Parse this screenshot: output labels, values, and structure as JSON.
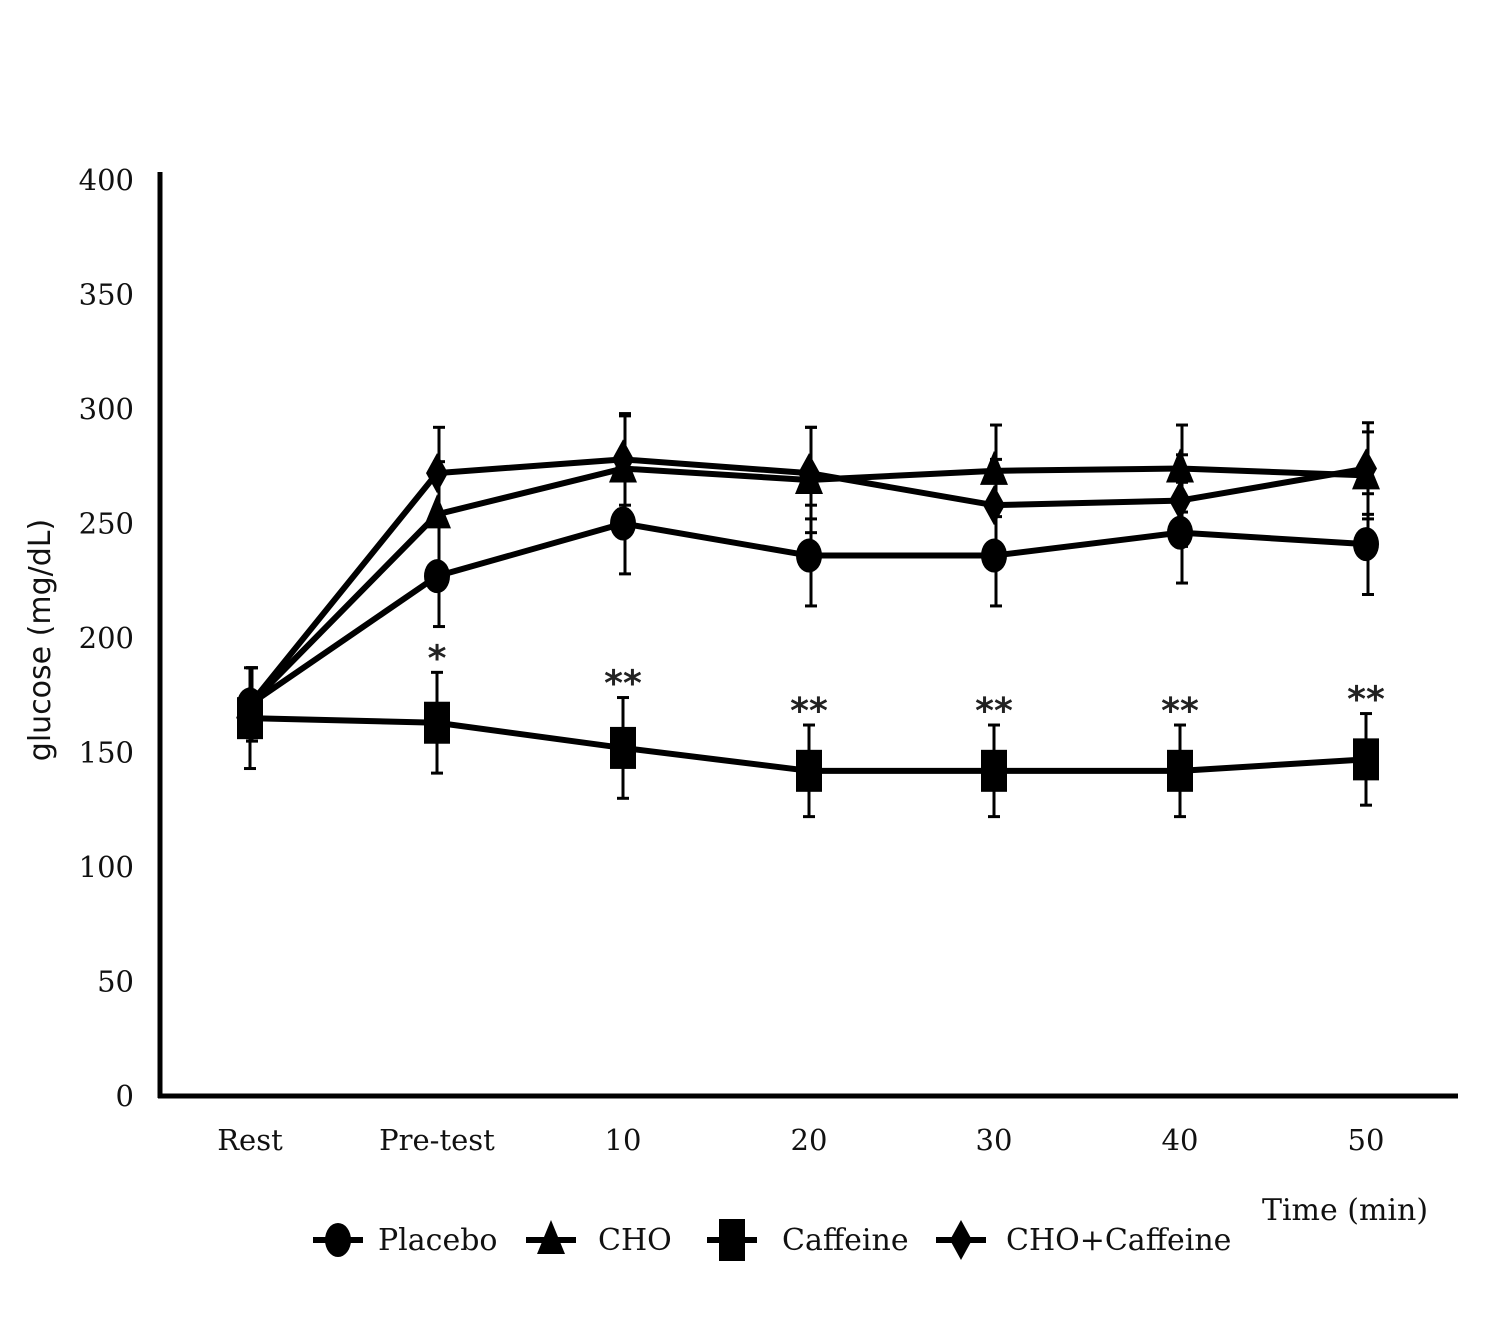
{
  "chart_data": {
    "type": "line",
    "title": "",
    "ylabel": "glucose (mg/dL)",
    "xlabel": "Time (min)",
    "ylim": [
      0,
      400
    ],
    "yticks": [
      "0",
      "50",
      "100",
      "150",
      "200",
      "250",
      "300",
      "350",
      "400"
    ],
    "categories": [
      "Rest",
      "Pre-test",
      "10",
      "20",
      "30",
      "40",
      "50"
    ],
    "grid": false,
    "legend_position": "bottom",
    "series": [
      {
        "name": "Placebo",
        "marker": "circle",
        "values": [
          171,
          227,
          250,
          236,
          236,
          246,
          241
        ],
        "errors": [
          16,
          22,
          22,
          22,
          22,
          22,
          22
        ]
      },
      {
        "name": "CHO",
        "marker": "triangle",
        "values": [
          171,
          254,
          274,
          269,
          273,
          274,
          271
        ],
        "errors": [
          16,
          23,
          23,
          23,
          20,
          19,
          19
        ]
      },
      {
        "name": "Caffeine",
        "marker": "square",
        "values": [
          165,
          163,
          152,
          142,
          142,
          142,
          147
        ],
        "errors": [
          22,
          22,
          22,
          20,
          20,
          20,
          20
        ]
      },
      {
        "name": "CHO+Caffeine",
        "marker": "diamond",
        "values": [
          171,
          272,
          278,
          272,
          258,
          260,
          274
        ],
        "errors": [
          16,
          20,
          20,
          20,
          20,
          20,
          20
        ]
      }
    ],
    "annotations": [
      "",
      "*",
      "**",
      "**",
      "**",
      "**",
      "**"
    ]
  }
}
